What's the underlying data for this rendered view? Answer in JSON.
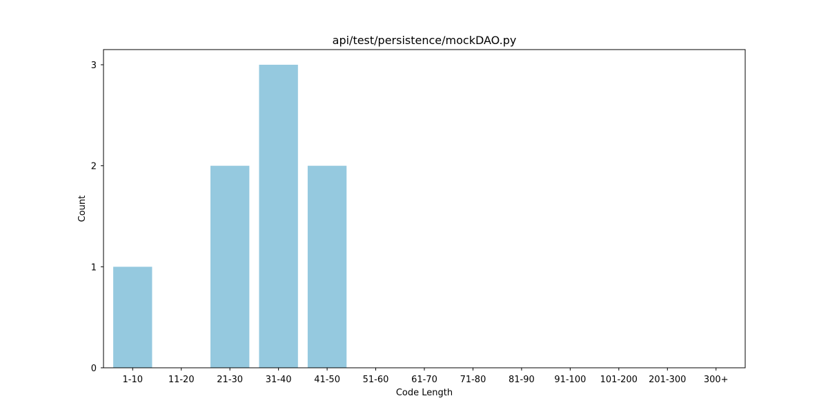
{
  "chart_data": {
    "type": "bar",
    "title": "api/test/persistence/mockDAO.py",
    "xlabel": "Code Length",
    "ylabel": "Count",
    "categories": [
      "1-10",
      "11-20",
      "21-30",
      "31-40",
      "41-50",
      "51-60",
      "61-70",
      "71-80",
      "81-90",
      "91-100",
      "101-200",
      "201-300",
      "300+"
    ],
    "values": [
      1,
      0,
      2,
      3,
      2,
      0,
      0,
      0,
      0,
      0,
      0,
      0,
      0
    ],
    "ylim": [
      0,
      3.15
    ],
    "yticks": [
      0,
      1,
      2,
      3
    ],
    "grid": false,
    "bar_color": "#95c9df"
  }
}
